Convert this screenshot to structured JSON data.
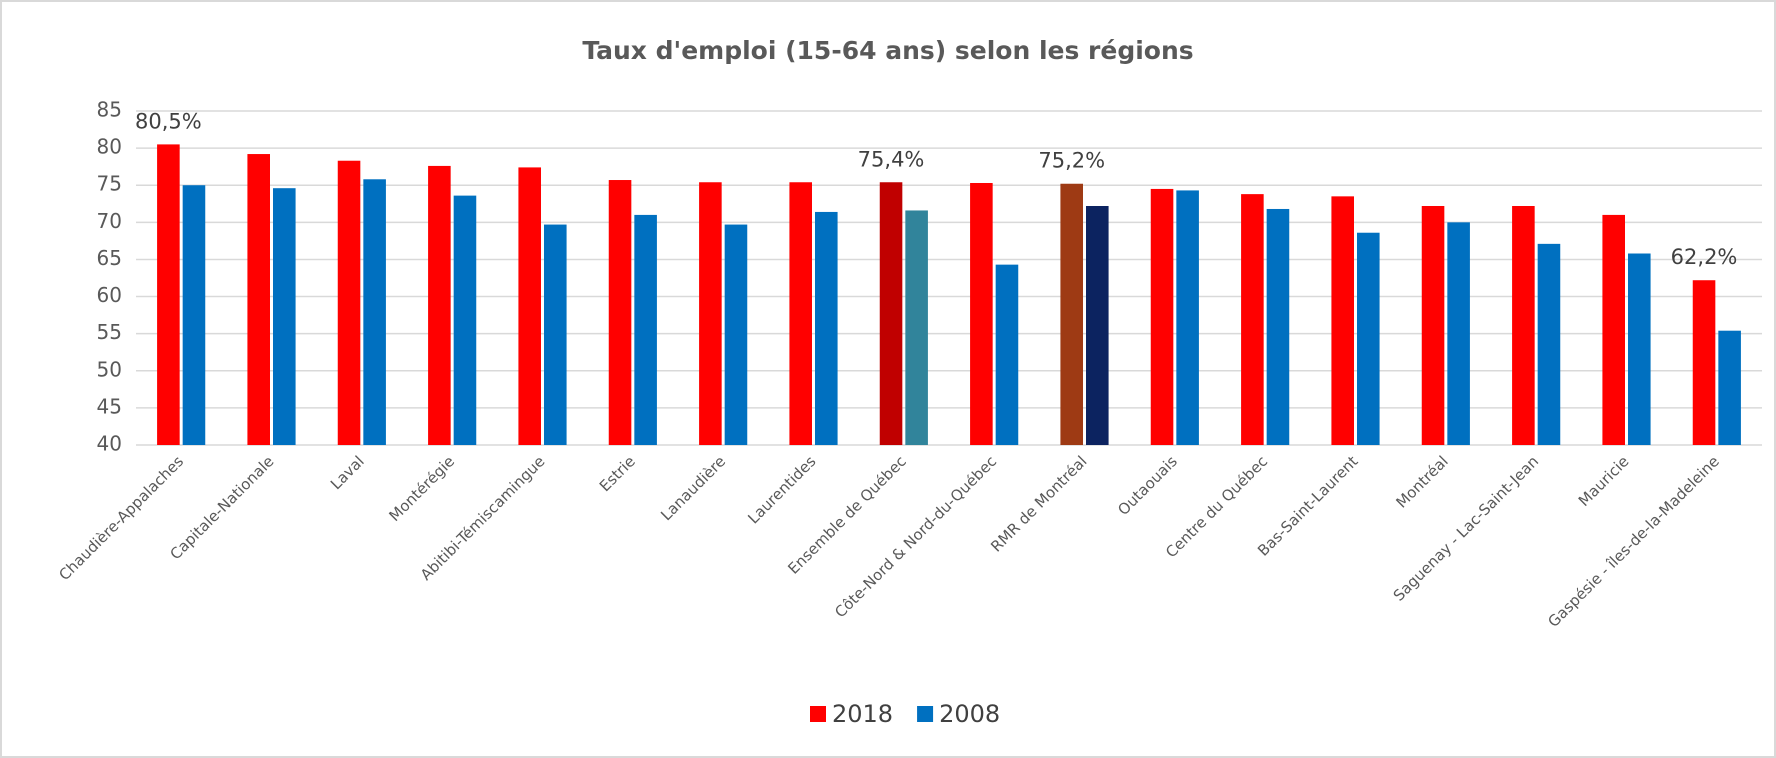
{
  "chart_data": {
    "type": "bar",
    "title": "Taux d'emploi (15-64 ans) selon les régions",
    "categories": [
      "Chaudière-Appalaches",
      "Capitale-Nationale",
      "Laval",
      "Montérégie",
      "Abitibi-Témiscamingue",
      "Estrie",
      "Lanaudière",
      "Laurentides",
      "Ensemble de Québec",
      "Côte-Nord & Nord-du-Québec",
      "RMR de Montréal",
      "Outaouais",
      "Centre du Québec",
      "Bas-Saint-Laurent",
      "Montréal",
      "Saguenay - Lac-Saint-Jean",
      "Mauricie",
      "Gaspésie - îles-de-la-Madeleine"
    ],
    "series": [
      {
        "name": "2018",
        "color": "#ff0000",
        "colors": [
          "#ff0000",
          "#ff0000",
          "#ff0000",
          "#ff0000",
          "#ff0000",
          "#ff0000",
          "#ff0000",
          "#ff0000",
          "#c00000",
          "#ff0000",
          "#9e3a14",
          "#ff0000",
          "#ff0000",
          "#ff0000",
          "#ff0000",
          "#ff0000",
          "#ff0000",
          "#ff0000"
        ],
        "values": [
          80.5,
          79.2,
          78.3,
          77.6,
          77.4,
          75.7,
          75.4,
          75.4,
          75.4,
          75.3,
          75.2,
          74.5,
          73.8,
          73.5,
          72.2,
          72.2,
          71.0,
          62.2
        ],
        "value_labels": [
          "80,5%",
          null,
          null,
          null,
          null,
          null,
          null,
          null,
          "75,4%",
          null,
          "75,2%",
          null,
          null,
          null,
          null,
          null,
          null,
          "62,2%"
        ]
      },
      {
        "name": "2008",
        "color": "#0070c0",
        "colors": [
          "#0070c0",
          "#0070c0",
          "#0070c0",
          "#0070c0",
          "#0070c0",
          "#0070c0",
          "#0070c0",
          "#0070c0",
          "#31849b",
          "#0070c0",
          "#0c2360",
          "#0070c0",
          "#0070c0",
          "#0070c0",
          "#0070c0",
          "#0070c0",
          "#0070c0",
          "#0070c0"
        ],
        "values": [
          75.0,
          74.6,
          75.8,
          73.6,
          69.7,
          71.0,
          69.7,
          71.4,
          71.6,
          64.3,
          72.2,
          74.3,
          71.8,
          68.6,
          70.0,
          67.1,
          65.8,
          55.4
        ]
      }
    ],
    "ylim": [
      40,
      85
    ],
    "yticks": [
      40,
      45,
      50,
      55,
      60,
      65,
      70,
      75,
      80,
      85
    ],
    "grid": true,
    "legend": "bottom"
  }
}
